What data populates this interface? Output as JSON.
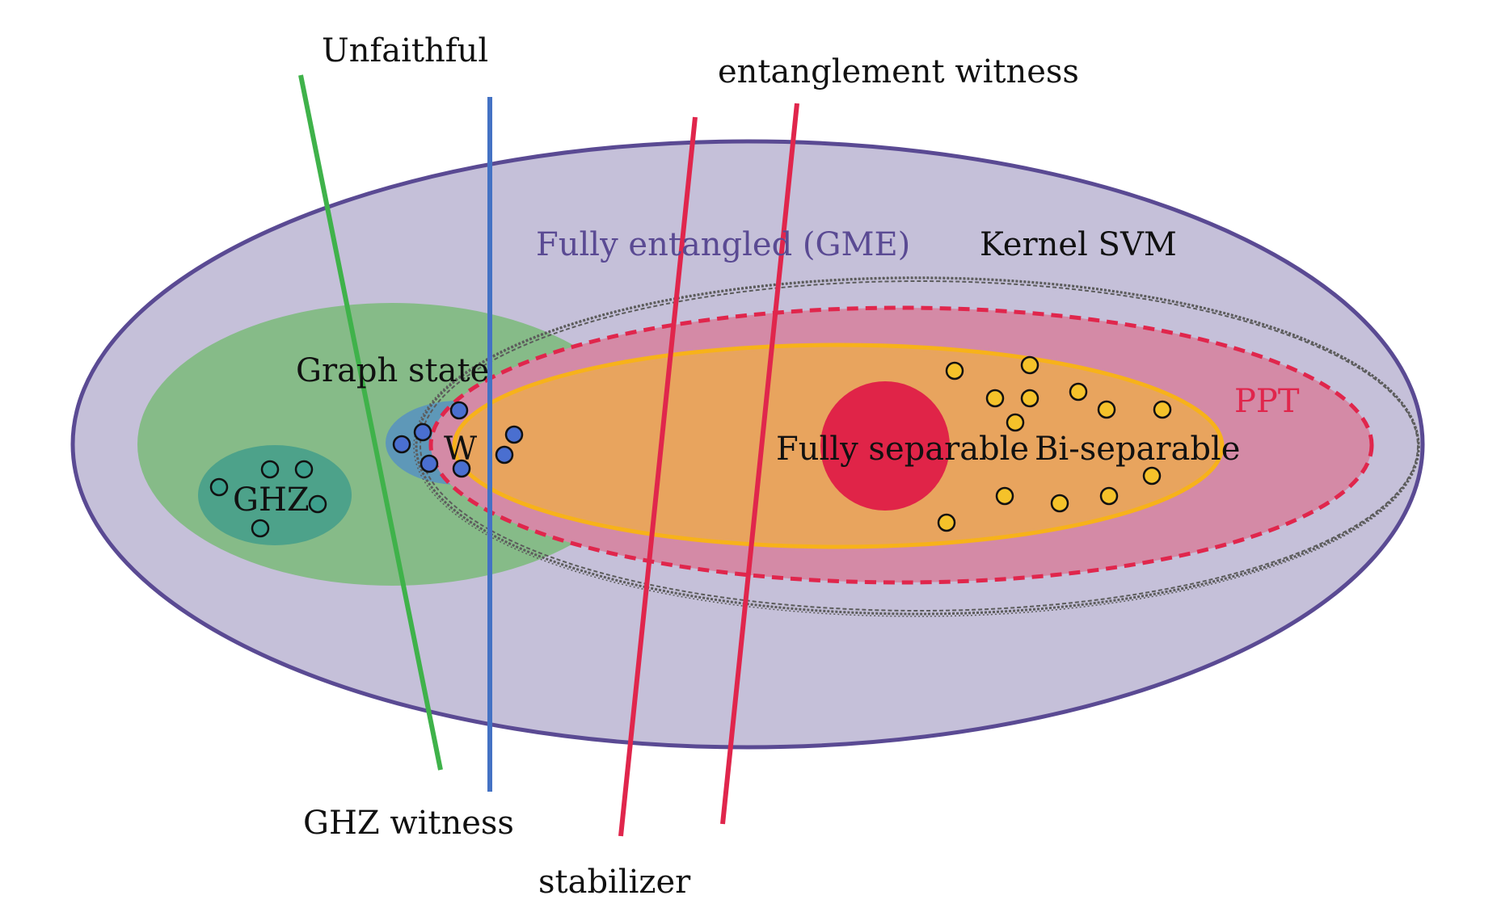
{
  "labels": {
    "unfaithful": "Unfaithful",
    "entanglement_witness": "entanglement witness",
    "fully_entangled": "Fully entangled (GME)",
    "kernel_svm": "Kernel SVM",
    "graph_state": "Graph state",
    "w": "W",
    "ghz": "GHZ",
    "ppt": "PPT",
    "fully_separable": "Fully separable",
    "bi_separable": "Bi-separable",
    "ghz_witness": "GHZ witness",
    "stabilizer": "stabilizer"
  },
  "colors": {
    "outer_fill": "#c5c0d9",
    "outer_stroke": "#5a4a93",
    "graph_fill": "#86bb88",
    "ghz_fill": "#4da28a",
    "w_fill": "#5e98b8",
    "ppt_fill": "#d48aa6",
    "ppt_stroke": "#e0264c",
    "bisep_fill": "#e8a45e",
    "bisep_stroke": "#f7b21a",
    "fullysep_fill": "#e02448",
    "kernel_stroke": "#5c5c5c",
    "unfaithful_line": "#3fb24a",
    "ghz_witness_line": "#4472c4",
    "witness_line": "#e0264c",
    "ghz_dot": "#3c9f8c",
    "w_dot": "#4a6fd0",
    "sep_dot": "#f5c22a",
    "gme_text": "#5a4a93",
    "ppt_text": "#e0264c"
  }
}
